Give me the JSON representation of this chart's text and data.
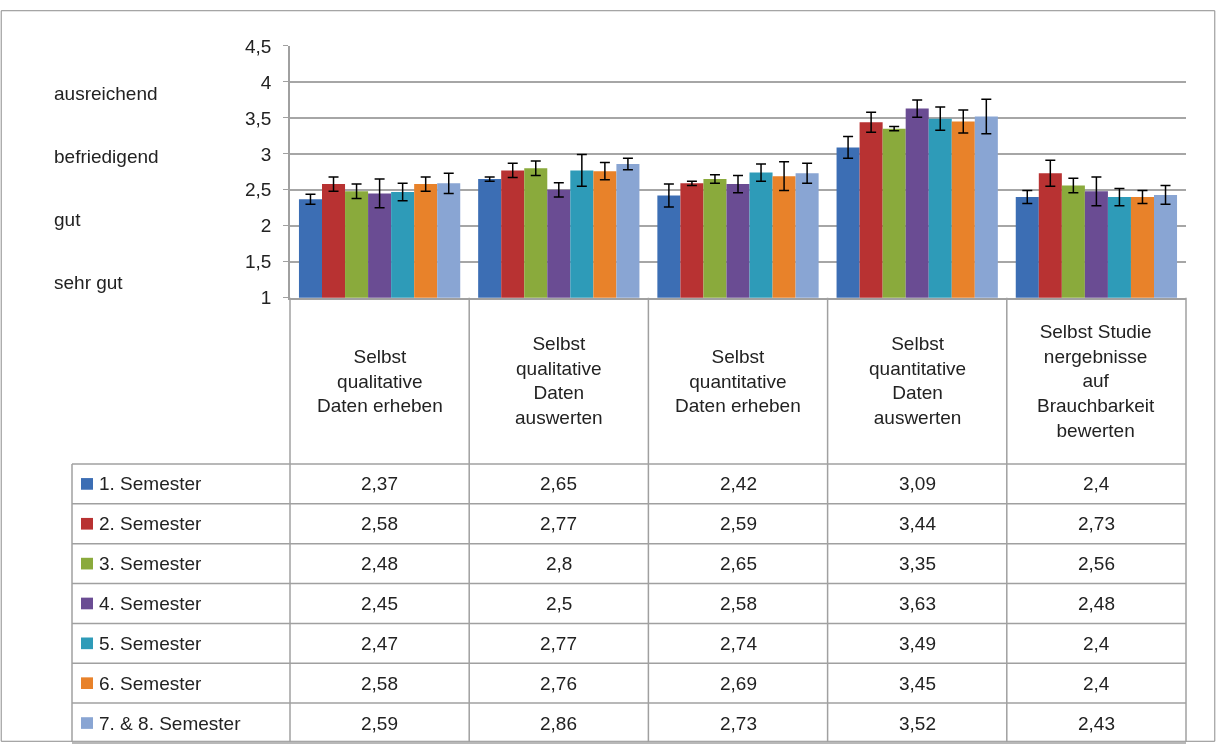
{
  "chart_data": {
    "type": "bar",
    "categories": [
      "Selbst qualitative Daten erheben",
      "Selbst qualitative Daten auswerten",
      "Selbst quantitative Daten erheben",
      "Selbst quantitative Daten auswerten",
      "Selbst Studienergebnisse auf Brauchbarkeit bewerten"
    ],
    "series": [
      {
        "name": "1. Semester",
        "color": "#3c6eb4",
        "values": [
          2.37,
          2.65,
          2.42,
          3.09,
          2.4
        ],
        "value_labels": [
          "2,37",
          "2,65",
          "2,42",
          "3,09",
          "2,4"
        ],
        "errors": [
          0.07,
          0.03,
          0.16,
          0.15,
          0.09
        ]
      },
      {
        "name": "2. Semester",
        "color": "#b83232",
        "values": [
          2.58,
          2.77,
          2.59,
          3.44,
          2.73
        ],
        "value_labels": [
          "2,58",
          "2,77",
          "2,59",
          "3,44",
          "2,73"
        ],
        "errors": [
          0.1,
          0.1,
          0.03,
          0.14,
          0.18
        ]
      },
      {
        "name": "3. Semester",
        "color": "#8aaa3c",
        "values": [
          2.48,
          2.8,
          2.65,
          3.35,
          2.56
        ],
        "value_labels": [
          "2,48",
          "2,8",
          "2,65",
          "3,35",
          "2,56"
        ],
        "errors": [
          0.1,
          0.1,
          0.06,
          0.03,
          0.1
        ]
      },
      {
        "name": "4. Semester",
        "color": "#6a4c93",
        "values": [
          2.45,
          2.5,
          2.58,
          3.63,
          2.48
        ],
        "value_labels": [
          "2,45",
          "2,5",
          "2,58",
          "3,63",
          "2,48"
        ],
        "errors": [
          0.2,
          0.1,
          0.12,
          0.12,
          0.2
        ]
      },
      {
        "name": "5. Semester",
        "color": "#2e9bb8",
        "values": [
          2.47,
          2.77,
          2.74,
          3.49,
          2.4
        ],
        "value_labels": [
          "2,47",
          "2,77",
          "2,74",
          "3,49",
          "2,4"
        ],
        "errors": [
          0.12,
          0.22,
          0.12,
          0.16,
          0.12
        ]
      },
      {
        "name": "6. Semester",
        "color": "#e8822a",
        "values": [
          2.58,
          2.76,
          2.69,
          3.45,
          2.4
        ],
        "value_labels": [
          "2,58",
          "2,76",
          "2,69",
          "3,45",
          "2,4"
        ],
        "errors": [
          0.1,
          0.12,
          0.2,
          0.16,
          0.09
        ]
      },
      {
        "name": "7. & 8. Semester",
        "color": "#89a5d3",
        "values": [
          2.59,
          2.86,
          2.73,
          3.52,
          2.43
        ],
        "value_labels": [
          "2,59",
          "2,86",
          "2,73",
          "3,52",
          "2,43"
        ],
        "errors": [
          0.14,
          0.08,
          0.14,
          0.24,
          0.13
        ]
      }
    ],
    "ylim": [
      1,
      4.5
    ],
    "yticks": [
      1,
      {
        "value": 1.5,
        "label": "1,5"
      },
      2,
      {
        "value": 2.5,
        "label": "2,5"
      },
      3,
      {
        "value": 3.5,
        "label": "3,5"
      },
      4,
      {
        "value": 4.5,
        "label": "4,5"
      }
    ],
    "annotations": [
      "ausreichend",
      "befriedigend",
      "gut",
      "sehr gut"
    ],
    "grid": "y",
    "legend": "bottom left"
  }
}
